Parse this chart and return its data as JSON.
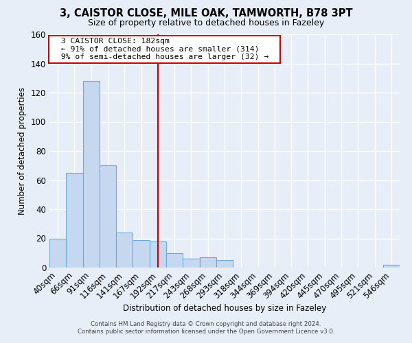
{
  "title": "3, CAISTOR CLOSE, MILE OAK, TAMWORTH, B78 3PT",
  "subtitle": "Size of property relative to detached houses in Fazeley",
  "xlabel": "Distribution of detached houses by size in Fazeley",
  "ylabel": "Number of detached properties",
  "bar_labels": [
    "40sqm",
    "66sqm",
    "91sqm",
    "116sqm",
    "141sqm",
    "167sqm",
    "192sqm",
    "217sqm",
    "243sqm",
    "268sqm",
    "293sqm",
    "318sqm",
    "344sqm",
    "369sqm",
    "394sqm",
    "420sqm",
    "445sqm",
    "470sqm",
    "495sqm",
    "521sqm",
    "546sqm"
  ],
  "bar_values": [
    20,
    65,
    128,
    70,
    24,
    19,
    18,
    10,
    6,
    7,
    5,
    0,
    0,
    0,
    0,
    0,
    0,
    0,
    0,
    0,
    2
  ],
  "bar_color": "#c5d8f0",
  "bar_edge_color": "#6aaad4",
  "vline_index": 6,
  "vline_color": "#cc0000",
  "ylim": [
    0,
    160
  ],
  "yticks": [
    0,
    20,
    40,
    60,
    80,
    100,
    120,
    140,
    160
  ],
  "annotation_title": "3 CAISTOR CLOSE: 182sqm",
  "annotation_line1": "← 91% of detached houses are smaller (314)",
  "annotation_line2": "9% of semi-detached houses are larger (32) →",
  "annotation_box_color": "#ffffff",
  "annotation_box_edge": "#cc0000",
  "footer1": "Contains HM Land Registry data © Crown copyright and database right 2024.",
  "footer2": "Contains public sector information licensed under the Open Government Licence v3.0.",
  "background_color": "#e8eef8",
  "plot_bg_color": "#e8eef8",
  "grid_color": "#ffffff"
}
